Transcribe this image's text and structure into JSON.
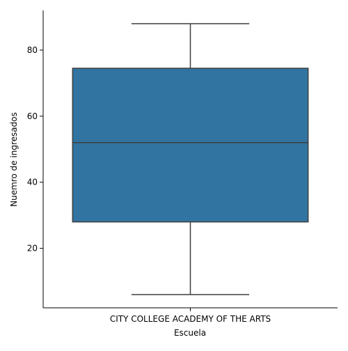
{
  "chart_data": {
    "type": "box",
    "xlabel": "Escuela",
    "ylabel": "Nuemro de ingresados",
    "categories": [
      "CITY COLLEGE ACADEMY OF THE ARTS"
    ],
    "boxes": [
      {
        "category": "CITY COLLEGE ACADEMY OF THE ARTS",
        "min": 6,
        "q1": 28,
        "median": 52,
        "q3": 74.5,
        "max": 88
      }
    ],
    "yticks": [
      20,
      40,
      60,
      80
    ],
    "ylim": [
      2,
      92
    ],
    "grid": false,
    "colors": {
      "box": "#3274a1",
      "line": "#3f3f3f",
      "axis": "#000000"
    }
  }
}
